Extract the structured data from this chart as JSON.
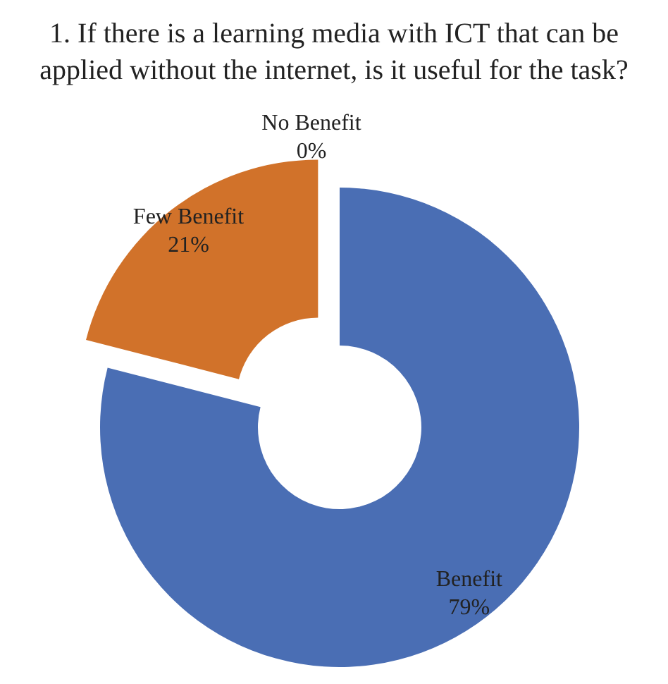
{
  "chart_data": {
    "type": "donut",
    "title": "1. If there is a learning media with ICT that can be applied without the internet, is it useful for the task?",
    "categories": [
      "Benefit",
      "Few Benefit",
      "No Benefit"
    ],
    "values": [
      79,
      21,
      0
    ],
    "colors": [
      "#4a6eb4",
      "#d1722a",
      "#a5a5a5"
    ],
    "value_labels": [
      "79%",
      "21%",
      "0%"
    ],
    "legend": false
  }
}
